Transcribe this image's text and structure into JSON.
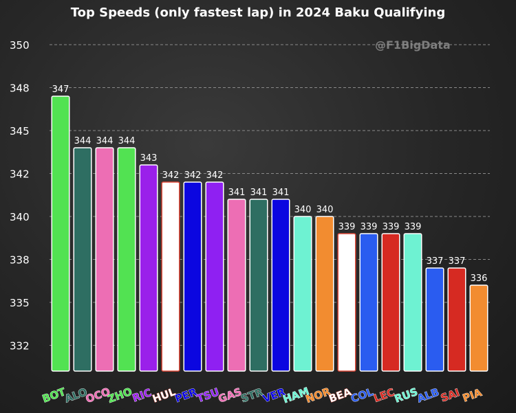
{
  "chart_data": {
    "type": "bar",
    "title": "Top Speeds (only fastest lap) in 2024 Baku Qualifying",
    "watermark": "@F1BigData",
    "ylim": [
      331,
      351
    ],
    "yticks": [
      {
        "value": 332.5,
        "label": "332"
      },
      {
        "value": 335,
        "label": "335"
      },
      {
        "value": 337.5,
        "label": "338"
      },
      {
        "value": 340,
        "label": "340"
      },
      {
        "value": 342.5,
        "label": "342"
      },
      {
        "value": 345,
        "label": "345"
      },
      {
        "value": 347.5,
        "label": "348"
      },
      {
        "value": 350,
        "label": "350"
      }
    ],
    "grid": true,
    "categories": [
      "BOT",
      "ALO",
      "OCO",
      "ZHO",
      "RIC",
      "HUL",
      "PER",
      "TSU",
      "GAS",
      "STR",
      "VER",
      "HAM",
      "NOR",
      "BEA",
      "COL",
      "LEC",
      "RUS",
      "ALB",
      "SAI",
      "PIA"
    ],
    "values": [
      347.0,
      344.0,
      344.0,
      344.0,
      343.0,
      342.0,
      342.0,
      342.0,
      341.0,
      341.0,
      341.0,
      340.0,
      340.0,
      339.0,
      339.0,
      339.0,
      339.0,
      337.0,
      337.0,
      336.0
    ],
    "labels": [
      "347",
      "344",
      "344",
      "344",
      "343",
      "342",
      "342",
      "342",
      "341",
      "341",
      "341",
      "340",
      "340",
      "339",
      "339",
      "339",
      "339",
      "337",
      "337",
      "336"
    ],
    "colors": [
      "#52e252",
      "#2e6e62",
      "#ed6eb4",
      "#52e252",
      "#9a20ea",
      "#ffffff",
      "#0b06e0",
      "#8f20f2",
      "#ed6eb4",
      "#2e6e62",
      "#0b06e0",
      "#6ef2d2",
      "#f28c30",
      "#ffffff",
      "#2a5cf0",
      "#d62a22",
      "#6ef2d2",
      "#2a5cf0",
      "#d62a22",
      "#f28c30"
    ],
    "borders": [
      "#ffffff",
      "#ffffff",
      "#ffffff",
      "#ffffff",
      "#ffffff",
      "#e04a3a",
      "#ffffff",
      "#ffffff",
      "#ffffff",
      "#ffffff",
      "#ffffff",
      "#ffffff",
      "#ffffff",
      "#e04a3a",
      "#ffffff",
      "#ffffff",
      "#ffffff",
      "#ffffff",
      "#ffffff",
      "#ffffff"
    ]
  }
}
